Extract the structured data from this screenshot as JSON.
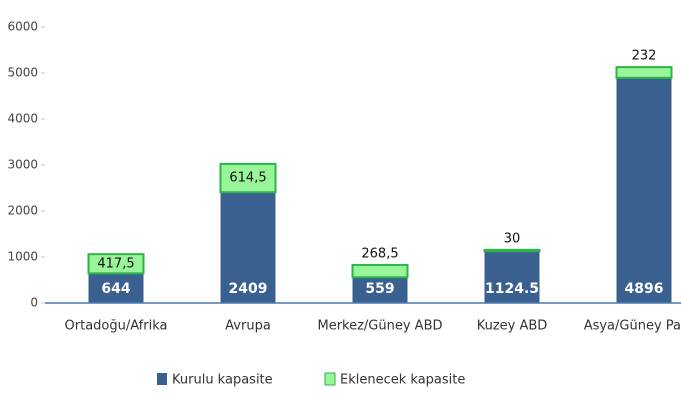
{
  "chart_data": {
    "type": "stacked-bar",
    "categories": [
      "Ortadoğu/Afrika",
      "Avrupa",
      "Merkez/Güney ABD",
      "Kuzey ABD",
      "Asya/Güney Pa"
    ],
    "series": [
      {
        "name": "Kurulu kapasite",
        "color": "#3a6090",
        "values": [
          644,
          2409,
          559,
          1124.5,
          4896
        ]
      },
      {
        "name": "Eklenecek kapasite",
        "color": "#99f59a",
        "values": [
          417.5,
          614.5,
          268.5,
          30,
          232
        ],
        "value_labels": [
          "417,5",
          "614,5",
          "268,5",
          "30",
          "232"
        ]
      }
    ],
    "ylim": [
      0,
      6000
    ],
    "yticks": [
      0,
      1000,
      2000,
      3000,
      4000,
      5000,
      6000
    ],
    "grid": false
  }
}
